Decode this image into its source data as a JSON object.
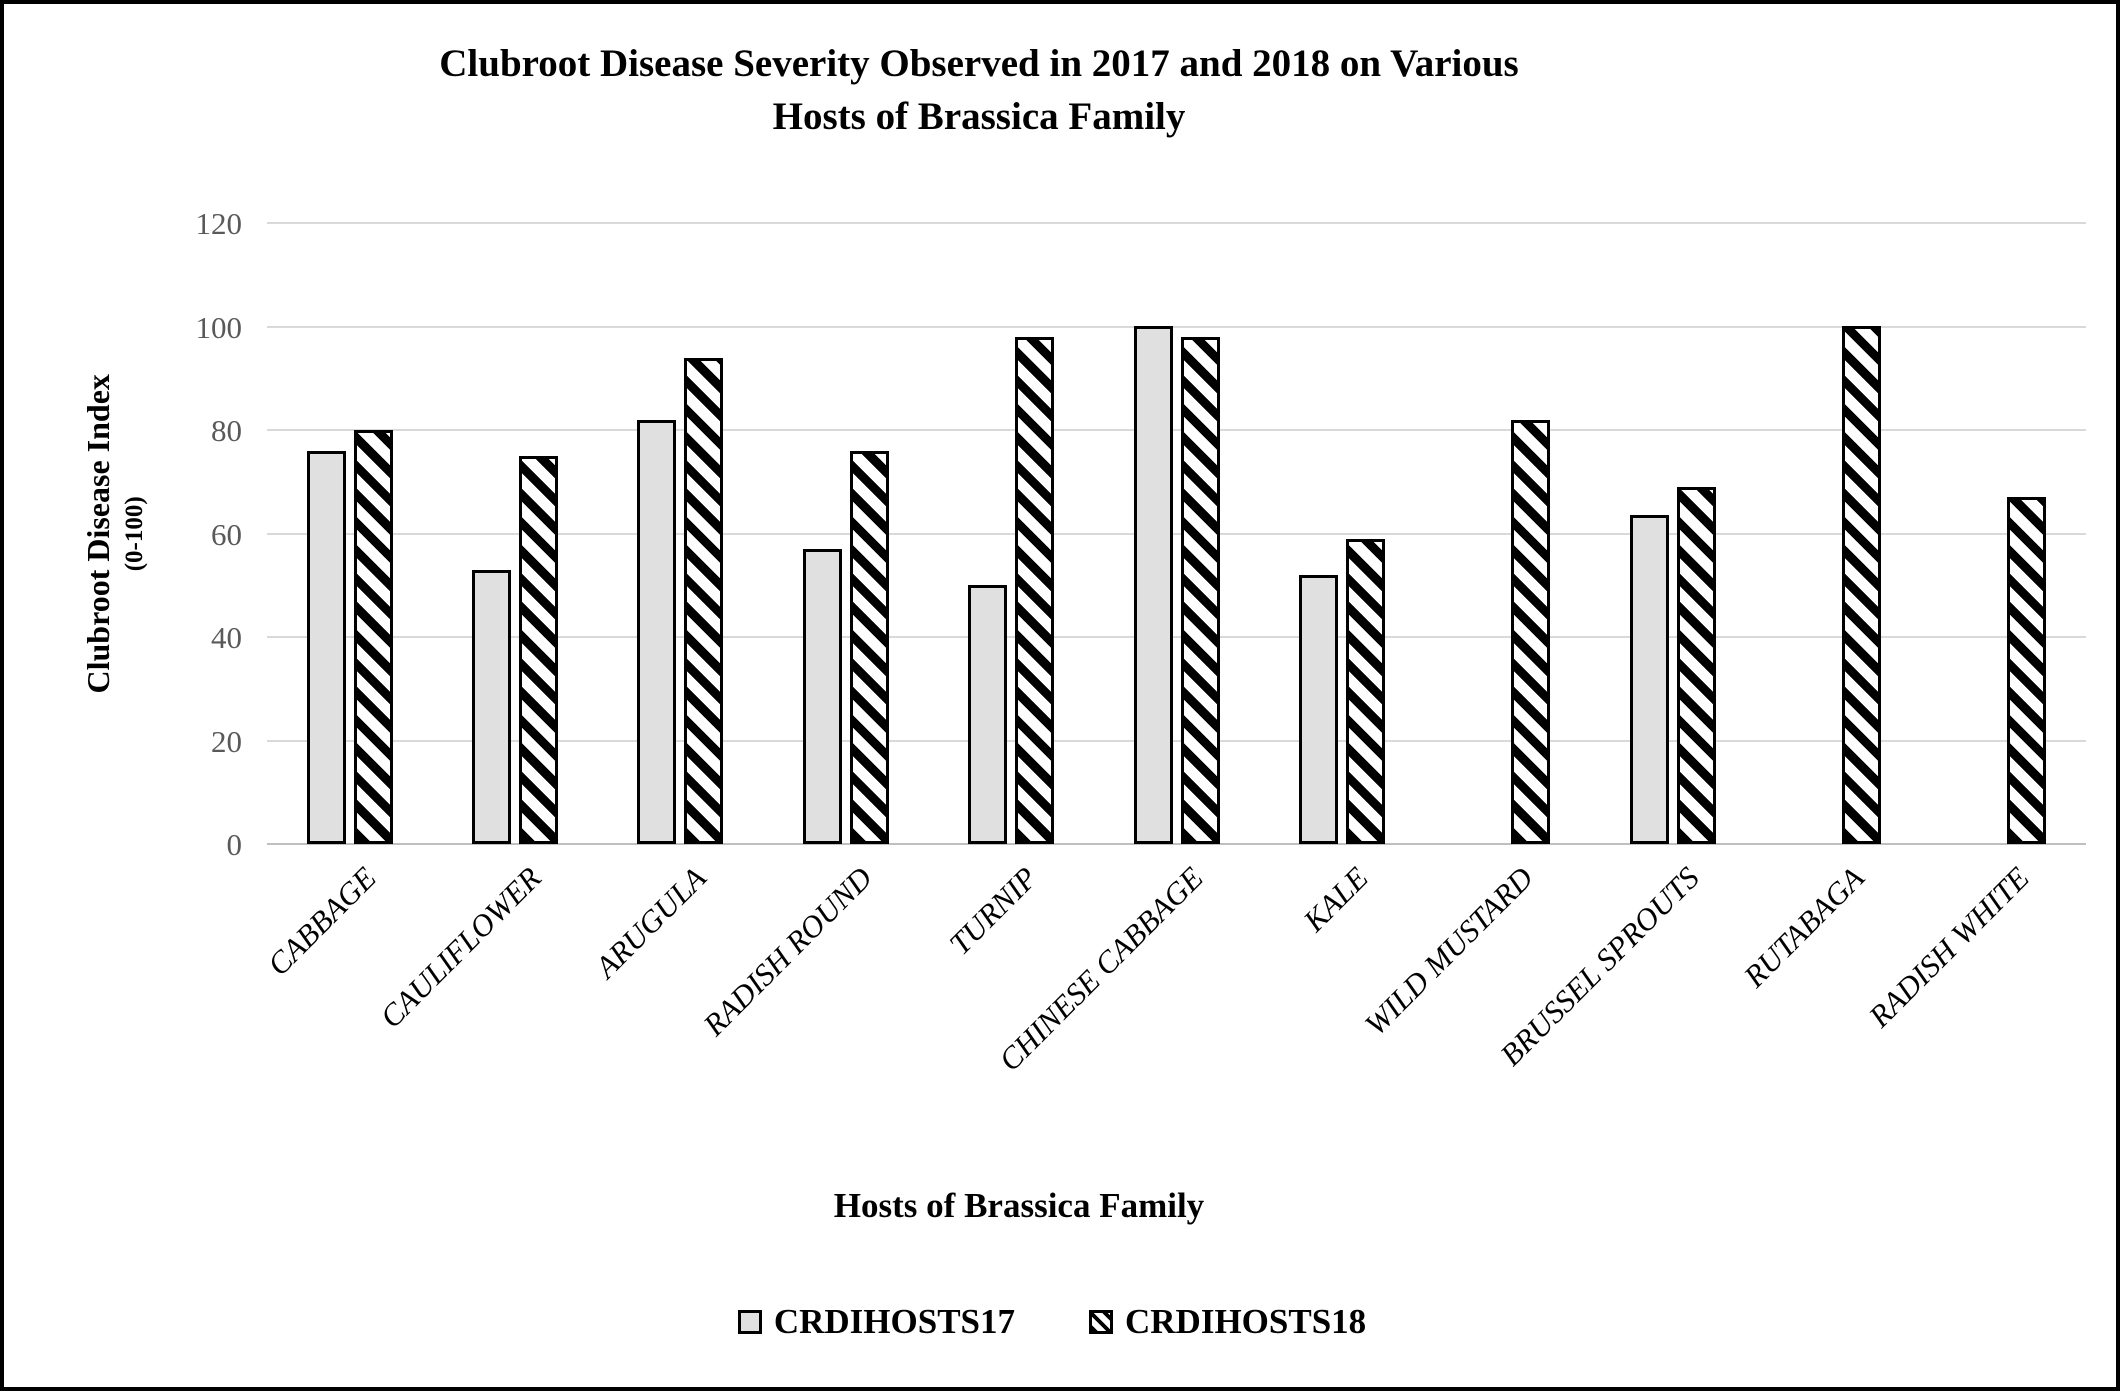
{
  "ui": {
    "title_line1": "Clubroot Disease Severity Observed in 2017 and 2018 on Various",
    "title_line2": "Hosts of Brassica Family"
  },
  "chart_data": {
    "type": "bar",
    "title": "Clubroot Disease Severity Observed in 2017 and 2018 on Various Hosts of Brassica Family",
    "xlabel": "Hosts of Brassica Family",
    "ylabel": "Clubroot Disease Index",
    "ylabel_sub": "(0-100)",
    "categories": [
      "CABBAGE",
      "CAULIFLOWER",
      "ARUGULA",
      "RADISH ROUND",
      "TURNIP",
      "CHINESE CABBAGE",
      "KALE",
      "WILD MUSTARD",
      "BRUSSEL SPROUTS",
      "RUTABAGA",
      "RADISH WHITE"
    ],
    "series": [
      {
        "name": "CRDIHOSTS17",
        "values": [
          76,
          53,
          82,
          57,
          50,
          100,
          52,
          null,
          63.5,
          null,
          null
        ]
      },
      {
        "name": "CRDIHOSTS18",
        "values": [
          80,
          75,
          94,
          76,
          98,
          98,
          59,
          82,
          69,
          100,
          67
        ]
      }
    ],
    "ylim": [
      0,
      120
    ],
    "ytick_step": 20,
    "grid": true,
    "legend_position": "bottom",
    "colors": {
      "series17_fill": "#e0e0e0",
      "series18_pattern": "black-diagonal-hatch-on-white",
      "bar_border": "#000000",
      "gridline": "#d9d9d9",
      "axis_line": "#bfbfbf",
      "tick_label": "#595959",
      "text": "#000000",
      "frame_border": "#000000"
    }
  }
}
